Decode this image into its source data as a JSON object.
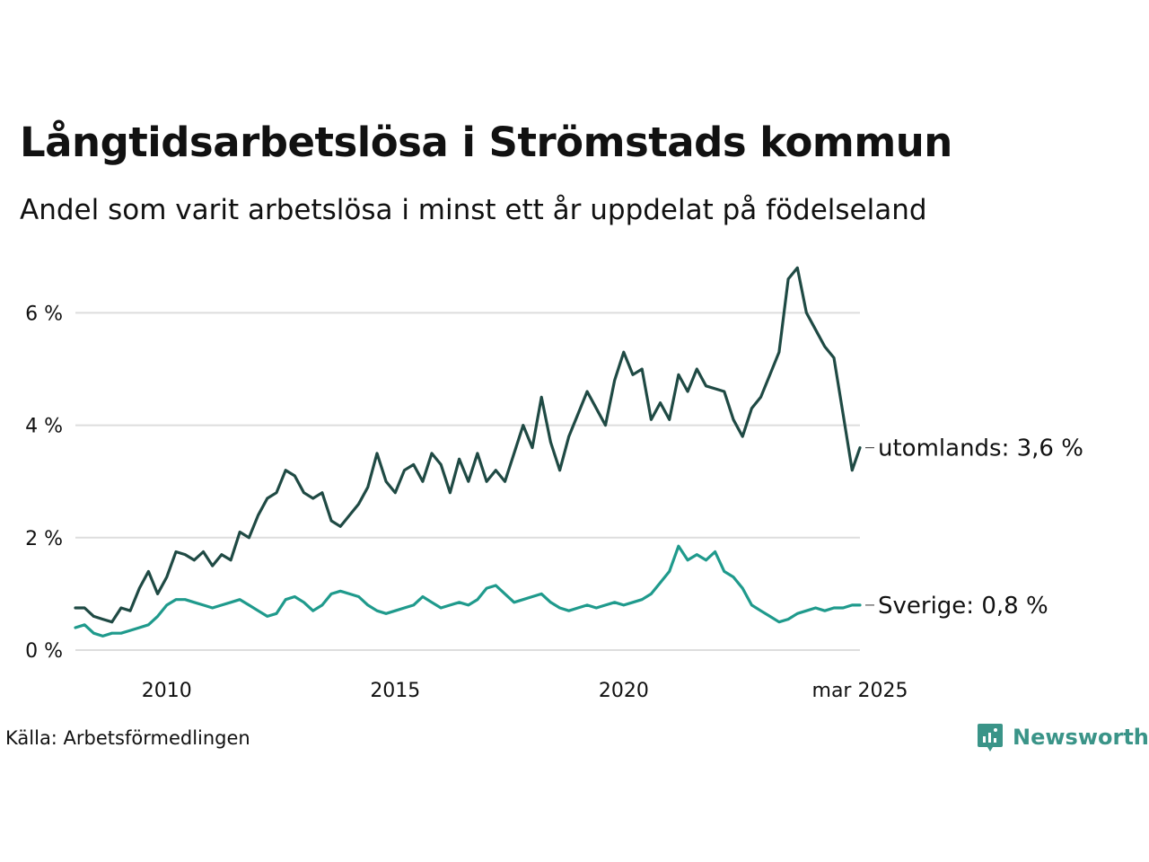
{
  "header": {
    "title": "Långtidsarbetslösa i Strömstads kommun",
    "subtitle": "Andel som varit arbetslösa i minst ett år uppdelat på födelseland"
  },
  "footer": {
    "source": "Källa: Arbetsförmedlingen",
    "brand": "Newsworthy"
  },
  "colors": {
    "utomlands": "#1f4a44",
    "sverige": "#1f9a8c",
    "grid": "#dddddd",
    "brand": "#3a9488"
  },
  "chart_data": {
    "type": "line",
    "title": "Långtidsarbetslösa i Strömstads kommun",
    "subtitle": "Andel som varit arbetslösa i minst ett år uppdelat på födelseland",
    "xlabel": "",
    "ylabel": "",
    "ylim": [
      0,
      7
    ],
    "yticks": [
      {
        "value": 0,
        "label": "0 %"
      },
      {
        "value": 2,
        "label": "2 %"
      },
      {
        "value": 4,
        "label": "4 %"
      },
      {
        "value": 6,
        "label": "6 %"
      }
    ],
    "xlim": [
      2008.0,
      2025.17
    ],
    "xticks": [
      {
        "value": 2010,
        "label": "2010"
      },
      {
        "value": 2015,
        "label": "2015"
      },
      {
        "value": 2020,
        "label": "2020"
      },
      {
        "value": 2025.17,
        "label": "mar 2025"
      }
    ],
    "grid": true,
    "legend": "end-of-line labels",
    "series": [
      {
        "name": "utomlands",
        "end_label": "utomlands: 3,6 %",
        "points": [
          [
            2008.0,
            0.75
          ],
          [
            2008.2,
            0.75
          ],
          [
            2008.4,
            0.6
          ],
          [
            2008.6,
            0.55
          ],
          [
            2008.8,
            0.5
          ],
          [
            2009.0,
            0.75
          ],
          [
            2009.2,
            0.7
          ],
          [
            2009.4,
            1.1
          ],
          [
            2009.6,
            1.4
          ],
          [
            2009.8,
            1.0
          ],
          [
            2010.0,
            1.3
          ],
          [
            2010.2,
            1.75
          ],
          [
            2010.4,
            1.7
          ],
          [
            2010.6,
            1.6
          ],
          [
            2010.8,
            1.75
          ],
          [
            2011.0,
            1.5
          ],
          [
            2011.2,
            1.7
          ],
          [
            2011.4,
            1.6
          ],
          [
            2011.6,
            2.1
          ],
          [
            2011.8,
            2.0
          ],
          [
            2012.0,
            2.4
          ],
          [
            2012.2,
            2.7
          ],
          [
            2012.4,
            2.8
          ],
          [
            2012.6,
            3.2
          ],
          [
            2012.8,
            3.1
          ],
          [
            2013.0,
            2.8
          ],
          [
            2013.2,
            2.7
          ],
          [
            2013.4,
            2.8
          ],
          [
            2013.6,
            2.3
          ],
          [
            2013.8,
            2.2
          ],
          [
            2014.0,
            2.4
          ],
          [
            2014.2,
            2.6
          ],
          [
            2014.4,
            2.9
          ],
          [
            2014.6,
            3.5
          ],
          [
            2014.8,
            3.0
          ],
          [
            2015.0,
            2.8
          ],
          [
            2015.2,
            3.2
          ],
          [
            2015.4,
            3.3
          ],
          [
            2015.6,
            3.0
          ],
          [
            2015.8,
            3.5
          ],
          [
            2016.0,
            3.3
          ],
          [
            2016.2,
            2.8
          ],
          [
            2016.4,
            3.4
          ],
          [
            2016.6,
            3.0
          ],
          [
            2016.8,
            3.5
          ],
          [
            2017.0,
            3.0
          ],
          [
            2017.2,
            3.2
          ],
          [
            2017.4,
            3.0
          ],
          [
            2017.6,
            3.5
          ],
          [
            2017.8,
            4.0
          ],
          [
            2018.0,
            3.6
          ],
          [
            2018.2,
            4.5
          ],
          [
            2018.4,
            3.7
          ],
          [
            2018.6,
            3.2
          ],
          [
            2018.8,
            3.8
          ],
          [
            2019.0,
            4.2
          ],
          [
            2019.2,
            4.6
          ],
          [
            2019.4,
            4.3
          ],
          [
            2019.6,
            4.0
          ],
          [
            2019.8,
            4.8
          ],
          [
            2020.0,
            5.3
          ],
          [
            2020.2,
            4.9
          ],
          [
            2020.4,
            5.0
          ],
          [
            2020.6,
            4.1
          ],
          [
            2020.8,
            4.4
          ],
          [
            2021.0,
            4.1
          ],
          [
            2021.2,
            4.9
          ],
          [
            2021.4,
            4.6
          ],
          [
            2021.6,
            5.0
          ],
          [
            2021.8,
            4.7
          ],
          [
            2022.0,
            4.65
          ],
          [
            2022.2,
            4.6
          ],
          [
            2022.4,
            4.1
          ],
          [
            2022.6,
            3.8
          ],
          [
            2022.8,
            4.3
          ],
          [
            2023.0,
            4.5
          ],
          [
            2023.2,
            4.9
          ],
          [
            2023.4,
            5.3
          ],
          [
            2023.6,
            6.6
          ],
          [
            2023.8,
            6.8
          ],
          [
            2024.0,
            6.0
          ],
          [
            2024.2,
            5.7
          ],
          [
            2024.4,
            5.4
          ],
          [
            2024.6,
            5.2
          ],
          [
            2024.8,
            4.2
          ],
          [
            2025.0,
            3.2
          ],
          [
            2025.17,
            3.6
          ]
        ]
      },
      {
        "name": "Sverige",
        "end_label": "Sverige: 0,8 %",
        "points": [
          [
            2008.0,
            0.4
          ],
          [
            2008.2,
            0.45
          ],
          [
            2008.4,
            0.3
          ],
          [
            2008.6,
            0.25
          ],
          [
            2008.8,
            0.3
          ],
          [
            2009.0,
            0.3
          ],
          [
            2009.2,
            0.35
          ],
          [
            2009.4,
            0.4
          ],
          [
            2009.6,
            0.45
          ],
          [
            2009.8,
            0.6
          ],
          [
            2010.0,
            0.8
          ],
          [
            2010.2,
            0.9
          ],
          [
            2010.4,
            0.9
          ],
          [
            2010.6,
            0.85
          ],
          [
            2010.8,
            0.8
          ],
          [
            2011.0,
            0.75
          ],
          [
            2011.2,
            0.8
          ],
          [
            2011.4,
            0.85
          ],
          [
            2011.6,
            0.9
          ],
          [
            2011.8,
            0.8
          ],
          [
            2012.0,
            0.7
          ],
          [
            2012.2,
            0.6
          ],
          [
            2012.4,
            0.65
          ],
          [
            2012.6,
            0.9
          ],
          [
            2012.8,
            0.95
          ],
          [
            2013.0,
            0.85
          ],
          [
            2013.2,
            0.7
          ],
          [
            2013.4,
            0.8
          ],
          [
            2013.6,
            1.0
          ],
          [
            2013.8,
            1.05
          ],
          [
            2014.0,
            1.0
          ],
          [
            2014.2,
            0.95
          ],
          [
            2014.4,
            0.8
          ],
          [
            2014.6,
            0.7
          ],
          [
            2014.8,
            0.65
          ],
          [
            2015.0,
            0.7
          ],
          [
            2015.2,
            0.75
          ],
          [
            2015.4,
            0.8
          ],
          [
            2015.6,
            0.95
          ],
          [
            2015.8,
            0.85
          ],
          [
            2016.0,
            0.75
          ],
          [
            2016.2,
            0.8
          ],
          [
            2016.4,
            0.85
          ],
          [
            2016.6,
            0.8
          ],
          [
            2016.8,
            0.9
          ],
          [
            2017.0,
            1.1
          ],
          [
            2017.2,
            1.15
          ],
          [
            2017.4,
            1.0
          ],
          [
            2017.6,
            0.85
          ],
          [
            2017.8,
            0.9
          ],
          [
            2018.0,
            0.95
          ],
          [
            2018.2,
            1.0
          ],
          [
            2018.4,
            0.85
          ],
          [
            2018.6,
            0.75
          ],
          [
            2018.8,
            0.7
          ],
          [
            2019.0,
            0.75
          ],
          [
            2019.2,
            0.8
          ],
          [
            2019.4,
            0.75
          ],
          [
            2019.6,
            0.8
          ],
          [
            2019.8,
            0.85
          ],
          [
            2020.0,
            0.8
          ],
          [
            2020.2,
            0.85
          ],
          [
            2020.4,
            0.9
          ],
          [
            2020.6,
            1.0
          ],
          [
            2020.8,
            1.2
          ],
          [
            2021.0,
            1.4
          ],
          [
            2021.2,
            1.85
          ],
          [
            2021.4,
            1.6
          ],
          [
            2021.6,
            1.7
          ],
          [
            2021.8,
            1.6
          ],
          [
            2022.0,
            1.75
          ],
          [
            2022.2,
            1.4
          ],
          [
            2022.4,
            1.3
          ],
          [
            2022.6,
            1.1
          ],
          [
            2022.8,
            0.8
          ],
          [
            2023.0,
            0.7
          ],
          [
            2023.2,
            0.6
          ],
          [
            2023.4,
            0.5
          ],
          [
            2023.6,
            0.55
          ],
          [
            2023.8,
            0.65
          ],
          [
            2024.0,
            0.7
          ],
          [
            2024.2,
            0.75
          ],
          [
            2024.4,
            0.7
          ],
          [
            2024.6,
            0.75
          ],
          [
            2024.8,
            0.75
          ],
          [
            2025.0,
            0.8
          ],
          [
            2025.17,
            0.8
          ]
        ]
      }
    ]
  }
}
